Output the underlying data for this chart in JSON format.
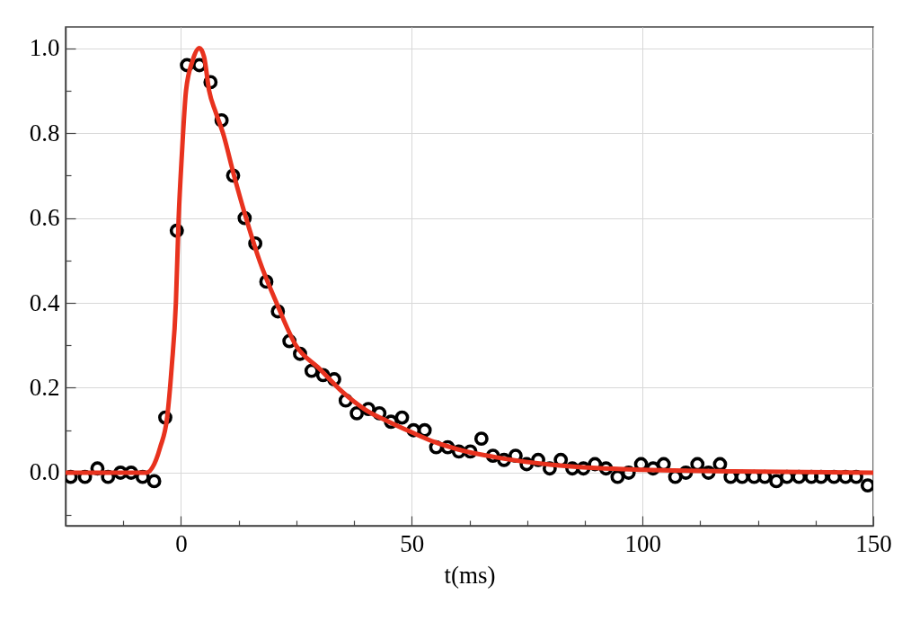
{
  "chart_data": {
    "type": "scatter",
    "xlabel": "t(ms)",
    "xlim": [
      -25,
      150
    ],
    "ylim": [
      -0.125,
      1.05
    ],
    "xticks": [
      {
        "value": -12.5,
        "label": null
      },
      0,
      {
        "value": 12.5,
        "label": null
      },
      {
        "value": 25,
        "label": null
      },
      {
        "value": 37.5,
        "label": null
      },
      50,
      {
        "value": 62.5,
        "label": null
      },
      {
        "value": 75,
        "label": null
      },
      {
        "value": 87.5,
        "label": null
      },
      100,
      {
        "value": 112.5,
        "label": null
      },
      {
        "value": 125,
        "label": null
      },
      {
        "value": 137.5,
        "label": null
      },
      150
    ],
    "yticks": [
      {
        "value": -0.1,
        "label": null
      },
      {
        "value": 0,
        "label": "0.0"
      },
      {
        "value": 0.1,
        "label": null
      },
      0.2,
      {
        "value": 0.3,
        "label": null
      },
      0.4,
      {
        "value": 0.5,
        "label": null
      },
      0.6,
      {
        "value": 0.7,
        "label": null
      },
      0.8,
      {
        "value": 0.9,
        "label": null
      },
      {
        "value": 1,
        "label": "1.0"
      }
    ],
    "grid": true,
    "marker": "circle",
    "series": [
      {
        "color": "#000000",
        "x": [
          -23.9,
          -20.8,
          -18.1,
          -15.8,
          -13.1,
          -10.8,
          -8.3,
          -5.8,
          -3.4,
          -0.9,
          1.3,
          4.0,
          6.4,
          8.8,
          11.3,
          13.8,
          16.1,
          18.5,
          21.0,
          23.5,
          25.8,
          28.3,
          30.8,
          33.2,
          35.7,
          38.1,
          40.6,
          43.0,
          45.5,
          47.9,
          50.4,
          52.8,
          55.3,
          57.8,
          60.2,
          62.7,
          65.1,
          67.6,
          70.0,
          72.5,
          74.9,
          77.4,
          79.9,
          82.3,
          84.8,
          87.2,
          89.7,
          92.1,
          94.6,
          97.0,
          99.7,
          102.3,
          104.6,
          107.1,
          109.4,
          111.9,
          114.3,
          116.8,
          119.1,
          121.6,
          124.2,
          126.5,
          129.0,
          131.3,
          133.9,
          136.6,
          138.7,
          141.5,
          144.0,
          146.3,
          148.8
        ],
        "values": [
          -0.01,
          -0.01,
          0.01,
          -0.01,
          0,
          0,
          -0.01,
          -0.02,
          0.13,
          0.57,
          0.96,
          0.96,
          0.92,
          0.83,
          0.7,
          0.6,
          0.54,
          0.45,
          0.38,
          0.31,
          0.28,
          0.24,
          0.23,
          0.22,
          0.17,
          0.14,
          0.15,
          0.14,
          0.12,
          0.13,
          0.1,
          0.1,
          0.06,
          0.06,
          0.05,
          0.05,
          0.08,
          0.04,
          0.03,
          0.04,
          0.02,
          0.03,
          0.01,
          0.03,
          0.01,
          0.01,
          0.02,
          0.01,
          -0.01,
          0,
          0.02,
          0.01,
          0.02,
          -0.01,
          0,
          0.02,
          0,
          0.02,
          -0.01,
          -0.01,
          -0.01,
          -0.01,
          -0.02,
          -0.01,
          -0.01,
          -0.01,
          -0.01,
          -0.01,
          -0.01,
          -0.01,
          -0.03
        ]
      },
      {
        "type": "line",
        "color": "#e8321e",
        "marker": "none",
        "x": [
          -25,
          -7.5,
          -5.8,
          -4.5,
          -3,
          -2,
          -1.1,
          -0.5,
          0.2,
          1.1,
          2.5,
          4,
          5,
          6.1,
          7.5,
          9.1,
          11.5,
          14.1,
          17,
          20.7,
          24.9,
          30,
          35,
          40,
          45,
          50,
          55,
          60,
          70,
          80,
          90,
          100,
          120,
          150
        ],
        "values": [
          0,
          0,
          0.02,
          0.06,
          0.13,
          0.25,
          0.4,
          0.6,
          0.75,
          0.9,
          0.97,
          1.0,
          0.98,
          0.9,
          0.85,
          0.8,
          0.7,
          0.6,
          0.5,
          0.4,
          0.3,
          0.245,
          0.19,
          0.148,
          0.12,
          0.095,
          0.072,
          0.055,
          0.033,
          0.019,
          0.011,
          0.007,
          0.003,
          0
        ]
      }
    ]
  }
}
